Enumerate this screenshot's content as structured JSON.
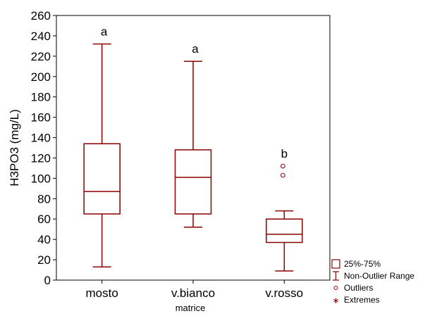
{
  "chart_data": {
    "type": "box",
    "xlabel": "matrice",
    "ylabel": "H3PO3 (mg/L)",
    "ylim": [
      0,
      260
    ],
    "yticks": [
      0,
      20,
      40,
      60,
      80,
      100,
      120,
      140,
      160,
      180,
      200,
      220,
      240,
      260
    ],
    "grid": false,
    "legend_placement": "bottom-right",
    "box_color": "#8B0000",
    "categories": [
      "mosto",
      "v.bianco",
      "v.rosso"
    ],
    "boxes": [
      {
        "category": "mosto",
        "q1": 65,
        "median": 87,
        "q3": 134,
        "whisker_low": 13,
        "whisker_high": 232,
        "outliers": [],
        "extremes": [],
        "letter": "a"
      },
      {
        "category": "v.bianco",
        "q1": 65,
        "median": 101,
        "q3": 128,
        "whisker_low": 52,
        "whisker_high": 215,
        "outliers": [],
        "extremes": [],
        "letter": "a"
      },
      {
        "category": "v.rosso",
        "q1": 37,
        "median": 45,
        "q3": 60,
        "whisker_low": 9,
        "whisker_high": 68,
        "outliers": [
          103,
          112
        ],
        "extremes": [],
        "letter": "b"
      }
    ],
    "legend": [
      {
        "symbol": "box",
        "label": "25%-75%"
      },
      {
        "symbol": "whisker",
        "label": "Non-Outlier Range"
      },
      {
        "symbol": "circle",
        "label": "Outliers"
      },
      {
        "symbol": "star",
        "label": "Extremes"
      }
    ]
  }
}
